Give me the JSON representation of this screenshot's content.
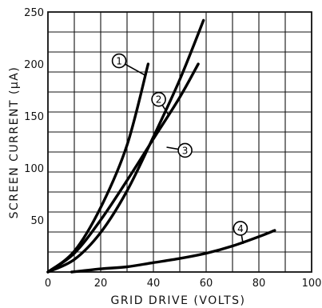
{
  "chart_data": {
    "type": "line",
    "title": "",
    "xlabel": "GRID DRIVE (VOLTS)",
    "ylabel": "SCREEN CURRENT (μA)",
    "xlim": [
      0,
      100
    ],
    "ylim": [
      0,
      250
    ],
    "x_ticks": [
      "0",
      "20",
      "40",
      "60",
      "80",
      "100"
    ],
    "y_ticks": [
      "50",
      "100",
      "150",
      "200",
      "250"
    ],
    "grid": true,
    "series": [
      {
        "name": "1",
        "points": [
          [
            0,
            0
          ],
          [
            10,
            20
          ],
          [
            20,
            62
          ],
          [
            30,
            122
          ],
          [
            38,
            200
          ]
        ]
      },
      {
        "name": "2",
        "points": [
          [
            0,
            0
          ],
          [
            10,
            12
          ],
          [
            20,
            38
          ],
          [
            30,
            78
          ],
          [
            40,
            130
          ],
          [
            50,
            185
          ],
          [
            59,
            242
          ]
        ]
      },
      {
        "name": "3",
        "points": [
          [
            0,
            0
          ],
          [
            10,
            18
          ],
          [
            20,
            50
          ],
          [
            30,
            88
          ],
          [
            40,
            128
          ],
          [
            50,
            168
          ],
          [
            57,
            200
          ]
        ]
      },
      {
        "name": "4",
        "points": [
          [
            9,
            0
          ],
          [
            20,
            3
          ],
          [
            30,
            5
          ],
          [
            40,
            9
          ],
          [
            50,
            13
          ],
          [
            60,
            18
          ],
          [
            70,
            25
          ],
          [
            80,
            34
          ],
          [
            86,
            40
          ]
        ]
      }
    ]
  }
}
